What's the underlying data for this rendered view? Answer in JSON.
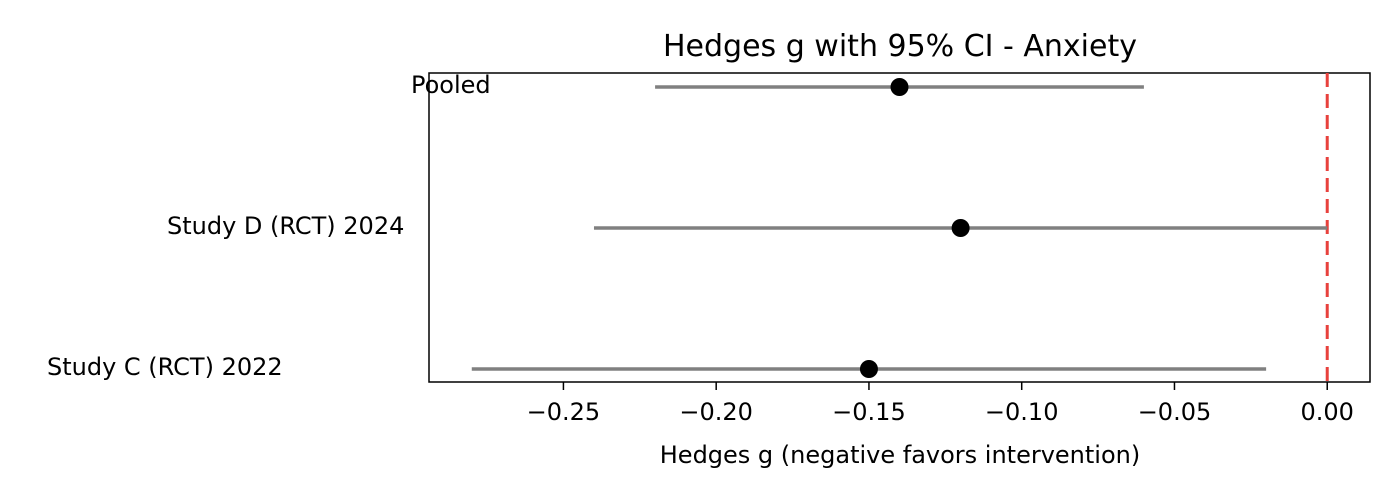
{
  "chart_data": {
    "type": "forest",
    "title": "Hedges g with 95% CI - Anxiety",
    "xlabel": "Hedges g (negative favors intervention)",
    "xlim": [
      -0.294,
      0.014
    ],
    "xticks": [
      -0.25,
      -0.2,
      -0.15,
      -0.1,
      -0.05,
      0.0
    ],
    "xtick_labels": [
      "−0.25",
      "−0.20",
      "−0.15",
      "−0.10",
      "−0.05",
      "0.00"
    ],
    "reference_line": {
      "x": 0.0,
      "color": "#e8413c",
      "style": "dashed"
    },
    "studies": [
      {
        "label": "Pooled",
        "estimate": -0.14,
        "ci_low": -0.22,
        "ci_high": -0.06
      },
      {
        "label": "Study D (RCT) 2024",
        "estimate": -0.12,
        "ci_low": -0.24,
        "ci_high": 0.0
      },
      {
        "label": "Study C (RCT) 2022",
        "estimate": -0.15,
        "ci_low": -0.28,
        "ci_high": -0.02
      }
    ],
    "colors": {
      "ci_line": "#808080",
      "point": "#000000",
      "axes": "#000000"
    },
    "grid": false
  }
}
